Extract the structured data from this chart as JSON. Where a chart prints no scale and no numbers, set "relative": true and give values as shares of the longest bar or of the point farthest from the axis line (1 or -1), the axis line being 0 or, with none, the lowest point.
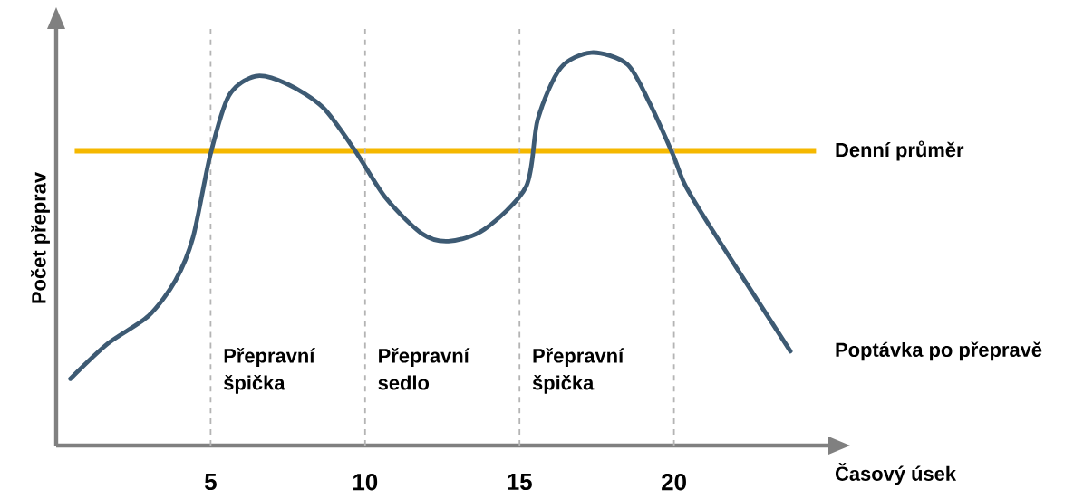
{
  "chart_data": {
    "type": "line",
    "relative": true,
    "xlabel": "Časový úsek",
    "ylabel": "Počet přeprav",
    "x": [
      0.46,
      1.68,
      2.99,
      3.86,
      4.43,
      4.99,
      5.59,
      6.46,
      7.48,
      8.64,
      9.68,
      10.67,
      11.83,
      12.7,
      13.86,
      15.22,
      15.59,
      16.32,
      17.33,
      18.49,
      19.22,
      19.97,
      20.38,
      21.39,
      23.77
    ],
    "series": [
      {
        "name": "Poptávka po přepravě",
        "color": "#3d5a73",
        "values": [
          0.17,
          0.26,
          0.33,
          0.42,
          0.53,
          0.74,
          0.89,
          0.94,
          0.92,
          0.86,
          0.75,
          0.63,
          0.54,
          0.52,
          0.55,
          0.66,
          0.83,
          0.96,
          1.0,
          0.97,
          0.87,
          0.74,
          0.66,
          0.53,
          0.24
        ]
      }
    ],
    "xlim": [
      0,
      25
    ],
    "xticks": [
      5,
      10,
      15,
      20
    ],
    "ref_lines": [
      {
        "axis": "y",
        "value": 0.75,
        "label": "Denní průměr",
        "color": "#f5b800",
        "line_style": "solid"
      },
      {
        "axis": "x",
        "value": 5,
        "color": "#b4b4b4",
        "line_style": "dashed"
      },
      {
        "axis": "x",
        "value": 10,
        "color": "#b4b4b4",
        "line_style": "dashed"
      },
      {
        "axis": "x",
        "value": 15,
        "color": "#b4b4b4",
        "line_style": "dashed"
      },
      {
        "axis": "x",
        "value": 20,
        "color": "#b4b4b4",
        "line_style": "dashed"
      }
    ],
    "annotations": [
      "Přepravní špička",
      "Přepravní sedlo",
      "Přepravní špička"
    ],
    "grid": false,
    "legend": false,
    "marker": "none",
    "line_style": "solid"
  }
}
